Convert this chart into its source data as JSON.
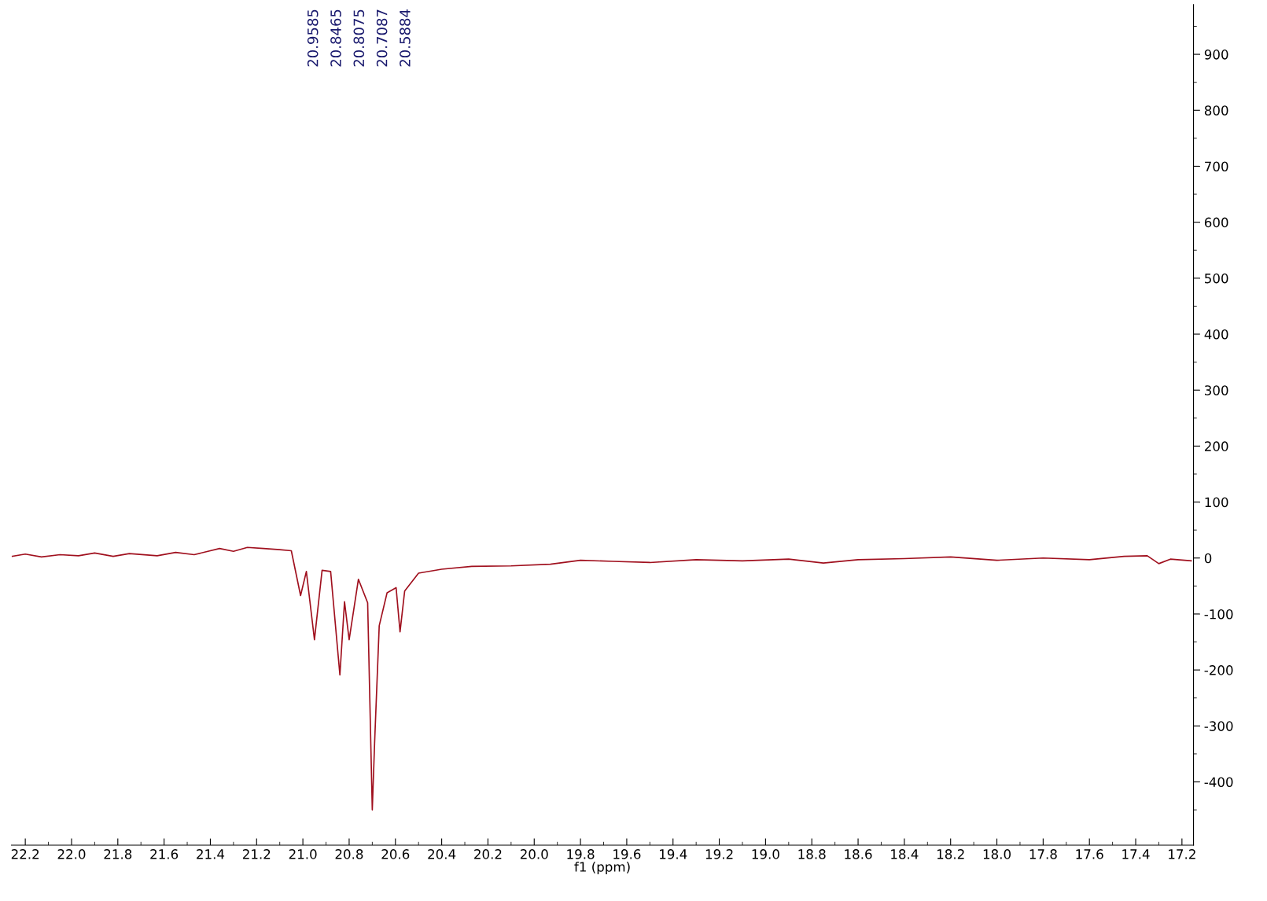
{
  "chart_data": {
    "type": "line",
    "xlabel": "f1 (ppm)",
    "x": [
      22.256,
      22.2,
      22.13,
      22.05,
      21.97,
      21.9,
      21.82,
      21.75,
      21.63,
      21.55,
      21.47,
      21.36,
      21.3,
      21.24,
      21.17,
      21.1,
      21.05,
      21.01,
      20.985,
      20.95,
      20.917,
      20.88,
      20.84,
      20.82,
      20.8,
      20.76,
      20.72,
      20.7,
      20.69,
      20.67,
      20.636,
      20.597,
      20.58,
      20.56,
      20.5,
      20.4,
      20.27,
      20.1,
      19.93,
      19.8,
      19.66,
      19.5,
      19.3,
      19.1,
      18.9,
      18.75,
      18.6,
      18.4,
      18.2,
      18.0,
      17.8,
      17.6,
      17.45,
      17.35,
      17.3,
      17.25,
      17.16
    ],
    "series": [
      {
        "color": "#a0101e",
        "values": [
          3,
          7,
          2,
          6,
          4,
          9,
          3,
          8,
          4,
          10,
          6,
          17,
          12,
          19,
          17,
          15,
          13,
          -67,
          -24,
          -146,
          -22,
          -24,
          -209,
          -78,
          -146,
          -38,
          -80,
          -450,
          -331,
          -121,
          -62,
          -53,
          -132,
          -59,
          -27,
          -20,
          -15,
          -14,
          -11,
          -4,
          -6,
          -8,
          -3,
          -5,
          -2,
          -9,
          -3,
          -1,
          2,
          -4,
          0,
          -3,
          3,
          4,
          -10,
          -2,
          -5
        ]
      }
    ],
    "annotations": [
      "20.9585",
      "20.8465",
      "20.8075",
      "20.7087",
      "20.5884"
    ],
    "xlim": [
      22.26,
      17.15
    ],
    "xticks": [
      22.2,
      {
        "value": 22,
        "label": "22.0"
      },
      21.8,
      21.6,
      21.4,
      21.2,
      {
        "value": 21,
        "label": "21.0"
      },
      20.8,
      20.6,
      20.4,
      20.2,
      {
        "value": 20,
        "label": "20.0"
      },
      19.8,
      19.6,
      19.4,
      19.2,
      {
        "value": 19,
        "label": "19.0"
      },
      18.8,
      18.6,
      18.4,
      18.2,
      {
        "value": 18,
        "label": "18.0"
      },
      17.8,
      17.6,
      17.4,
      17.2,
      {
        "value": 22.1,
        "label": null
      },
      {
        "value": 21.9,
        "label": null
      },
      {
        "value": 21.7,
        "label": null
      },
      {
        "value": 21.5,
        "label": null
      },
      {
        "value": 21.3,
        "label": null
      },
      {
        "value": 21.1,
        "label": null
      },
      {
        "value": 20.9,
        "label": null
      },
      {
        "value": 20.7,
        "label": null
      },
      {
        "value": 20.5,
        "label": null
      },
      {
        "value": 20.3,
        "label": null
      },
      {
        "value": 20.1,
        "label": null
      },
      {
        "value": 19.9,
        "label": null
      },
      {
        "value": 19.7,
        "label": null
      },
      {
        "value": 19.5,
        "label": null
      },
      {
        "value": 19.3,
        "label": null
      },
      {
        "value": 19.1,
        "label": null
      },
      {
        "value": 18.9,
        "label": null
      },
      {
        "value": 18.7,
        "label": null
      },
      {
        "value": 18.5,
        "label": null
      },
      {
        "value": 18.3,
        "label": null
      },
      {
        "value": 18.1,
        "label": null
      },
      {
        "value": 17.9,
        "label": null
      },
      {
        "value": 17.7,
        "label": null
      },
      {
        "value": 17.5,
        "label": null
      },
      {
        "value": 17.3,
        "label": null
      }
    ],
    "ylim": [
      -513,
      989
    ],
    "yticks": [
      900,
      800,
      700,
      600,
      500,
      400,
      300,
      200,
      100,
      0,
      -100,
      -200,
      -300,
      -400,
      {
        "value": 950,
        "label": null
      },
      {
        "value": 850,
        "label": null
      },
      {
        "value": 750,
        "label": null
      },
      {
        "value": 650,
        "label": null
      },
      {
        "value": 550,
        "label": null
      },
      {
        "value": 450,
        "label": null
      },
      {
        "value": 350,
        "label": null
      },
      {
        "value": 250,
        "label": null
      },
      {
        "value": 150,
        "label": null
      },
      {
        "value": 50,
        "label": null
      },
      {
        "value": -50,
        "label": null
      },
      {
        "value": -150,
        "label": null
      },
      {
        "value": -250,
        "label": null
      },
      {
        "value": -350,
        "label": null
      },
      {
        "value": -450,
        "label": null
      }
    ],
    "grid": false,
    "legend": false,
    "marker": "none",
    "line_style": "solid"
  }
}
